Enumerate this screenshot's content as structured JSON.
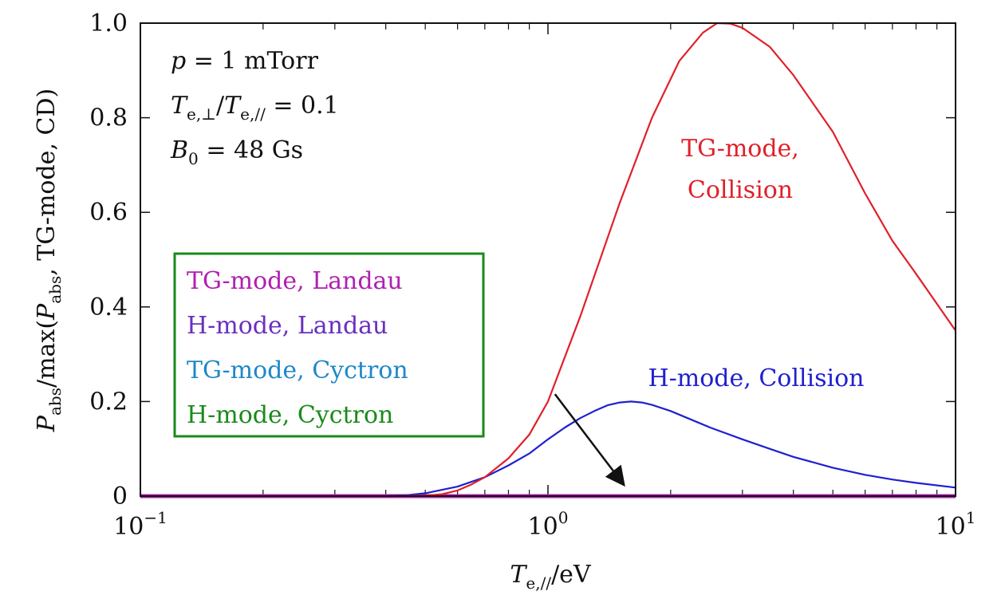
{
  "chart_data": {
    "type": "line",
    "x_scale": "log",
    "xlim": [
      0.1,
      10
    ],
    "ylim": [
      0,
      1.0
    ],
    "xlabel": {
      "main": "T",
      "sub": "e,//",
      "tail": "/eV"
    },
    "ylabel": "P_abs/max(P_abs, TG-mode, CD)",
    "x_ticks": [
      {
        "value": 0.1,
        "base": "10",
        "exp": "−1"
      },
      {
        "value": 1,
        "base": "10",
        "exp": "0"
      },
      {
        "value": 10,
        "base": "10",
        "exp": "1"
      }
    ],
    "y_ticks": [
      {
        "value": 0,
        "label": "0"
      },
      {
        "value": 0.2,
        "label": "0.2"
      },
      {
        "value": 0.4,
        "label": "0.4"
      },
      {
        "value": 0.6,
        "label": "0.6"
      },
      {
        "value": 0.8,
        "label": "0.8"
      },
      {
        "value": 1.0,
        "label": "1.0"
      }
    ],
    "annotations": {
      "pressure": "p = 1 mTorr",
      "temp_ratio": "Te,⊥/Te,// = 0.1",
      "field": "B0 = 48 Gs"
    },
    "series": [
      {
        "name": "TG-mode, Collision",
        "label_lines": [
          "TG-mode,",
          "Collision"
        ],
        "color": "#e0202a",
        "x": [
          0.1,
          0.4,
          0.5,
          0.55,
          0.6,
          0.65,
          0.7,
          0.8,
          0.9,
          1.0,
          1.2,
          1.5,
          1.8,
          2.1,
          2.4,
          2.6,
          2.8,
          3.0,
          3.5,
          4.0,
          5.0,
          6.0,
          7.0,
          8.0,
          10.0
        ],
        "y": [
          0,
          0,
          0.001,
          0.004,
          0.012,
          0.025,
          0.04,
          0.08,
          0.13,
          0.2,
          0.38,
          0.62,
          0.8,
          0.92,
          0.98,
          1.0,
          0.999,
          0.99,
          0.95,
          0.89,
          0.77,
          0.64,
          0.54,
          0.47,
          0.35
        ]
      },
      {
        "name": "H-mode, Collision",
        "label_lines": [
          "H-mode, Collision"
        ],
        "color": "#2020d0",
        "x": [
          0.1,
          0.4,
          0.45,
          0.5,
          0.6,
          0.7,
          0.8,
          0.9,
          1.0,
          1.1,
          1.2,
          1.3,
          1.4,
          1.5,
          1.6,
          1.7,
          1.8,
          2.0,
          2.2,
          2.5,
          3.0,
          3.5,
          4.0,
          5.0,
          6.0,
          7.0,
          8.0,
          10.0
        ],
        "y": [
          0,
          0,
          0.002,
          0.006,
          0.02,
          0.04,
          0.065,
          0.09,
          0.12,
          0.145,
          0.165,
          0.18,
          0.192,
          0.198,
          0.2,
          0.198,
          0.193,
          0.18,
          0.165,
          0.145,
          0.12,
          0.1,
          0.083,
          0.06,
          0.045,
          0.035,
          0.028,
          0.018
        ]
      },
      {
        "name": "TG-mode, Landau",
        "color": "#b020b0",
        "x": [
          0.1,
          10.0
        ],
        "y": [
          0,
          0
        ]
      },
      {
        "name": "H-mode, Landau",
        "color": "#6a2fc0",
        "x": [
          0.1,
          10.0
        ],
        "y": [
          0,
          0
        ]
      },
      {
        "name": "TG-mode, Cyctron",
        "color": "#1e88c8",
        "x": [
          0.1,
          10.0
        ],
        "y": [
          0,
          0
        ]
      },
      {
        "name": "H-mode, Cyctron",
        "color": "#1a8a1a",
        "x": [
          0.1,
          10.0
        ],
        "y": [
          0,
          0
        ]
      }
    ],
    "legend": {
      "placement": "left",
      "border_color": "#1a8a1a",
      "entries": [
        {
          "label": "TG-mode, Landau",
          "color": "#b020b0"
        },
        {
          "label": "H-mode, Landau",
          "color": "#6a2fc0"
        },
        {
          "label": "TG-mode, Cyctron",
          "color": "#1e88c8"
        },
        {
          "label": "H-mode, Cyctron",
          "color": "#1a8a1a"
        }
      ]
    },
    "arrow": {
      "from": [
        1.28,
        0.165
      ],
      "to": [
        2.0,
        0.02
      ]
    }
  }
}
